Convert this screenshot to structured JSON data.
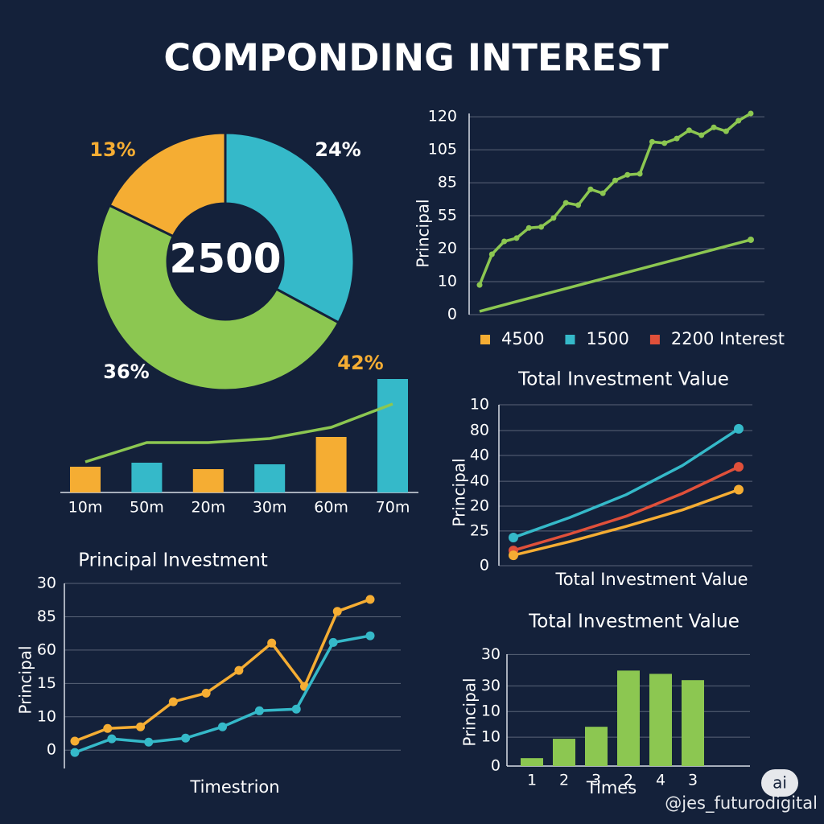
{
  "title": "COMPONDING INTEREST",
  "chart_data": [
    {
      "type": "donut",
      "center_label": "2500",
      "values": [
        24,
        36,
        13
      ],
      "value_labels": [
        "24%",
        "36%",
        "13%"
      ],
      "colors": [
        "#35b9c9",
        "#8cc751",
        "#f5ad33"
      ]
    },
    {
      "type": "line",
      "ylabel": "Principal",
      "ylim": [
        0,
        6.1
      ],
      "yticks": [
        0,
        {
          "value": 1,
          "label": "10"
        },
        {
          "value": 2,
          "label": "20"
        },
        {
          "value": 3,
          "label": "55"
        },
        {
          "value": 4,
          "label": "85"
        },
        {
          "value": 5,
          "label": "105"
        },
        {
          "value": 6,
          "label": "120"
        }
      ],
      "grid": true,
      "series": [
        {
          "color": "#8cc751",
          "values": [
            0.9,
            1.83,
            2.22,
            2.32,
            2.63,
            2.66,
            2.93,
            3.39,
            3.32,
            3.8,
            3.68,
            4.07,
            4.24,
            4.27,
            5.24,
            5.2,
            5.34,
            5.59,
            5.44,
            5.68,
            5.56,
            5.88,
            6.1
          ]
        },
        {
          "color": "#8cc751",
          "values": [
            0.1,
            2.27
          ]
        }
      ],
      "legend": [
        {
          "label": "4500",
          "color": "#f5ad33"
        },
        {
          "label": "1500",
          "color": "#35b9c9"
        },
        {
          "label": "2200 Interest",
          "color": "#e0503a"
        }
      ]
    },
    {
      "type": "bar",
      "categories": [
        "10m",
        "50m",
        "20m",
        "30m",
        "60m",
        "70m"
      ],
      "values": [
        32,
        37,
        29,
        35,
        69,
        141
      ],
      "colors": [
        "#f5ad33",
        "#35b9c9",
        "#f5ad33",
        "#35b9c9",
        "#f5ad33",
        "#35b9c9"
      ],
      "line": {
        "color": "#8cc751",
        "values": [
          38,
          62,
          62,
          67,
          81,
          110
        ]
      },
      "annotation": "42%"
    },
    {
      "type": "line",
      "title": "Principal Investment",
      "ylabel": "Principal",
      "xlabel": "Timestrion",
      "ylim": [
        -0.55,
        5
      ],
      "yticks": [
        0,
        {
          "value": 1,
          "label": "10"
        },
        {
          "value": 2,
          "label": "15"
        },
        {
          "value": 3,
          "label": "60"
        },
        {
          "value": 4,
          "label": "85"
        },
        {
          "value": 5,
          "label": "30"
        }
      ],
      "grid": true,
      "series": [
        {
          "color": "#f5ad33",
          "values": [
            0.27,
            0.65,
            0.7,
            1.45,
            1.71,
            2.39,
            3.21,
            1.91,
            4.16,
            4.52
          ]
        },
        {
          "color": "#35b9c9",
          "values": [
            -0.07,
            0.34,
            0.24,
            0.36,
            0.7,
            1.18,
            1.23,
            3.23,
            3.43
          ]
        }
      ]
    },
    {
      "type": "line",
      "title": "Total Investment Value",
      "ylabel": "Principal",
      "xlabel": "Total Investment Value",
      "ylim": [
        0,
        6.35
      ],
      "yticks": [
        0,
        {
          "value": 1.37,
          "label": "25"
        },
        {
          "value": 2.35,
          "label": "20"
        },
        {
          "value": 3.33,
          "label": "40"
        },
        {
          "value": 4.35,
          "label": "40"
        },
        {
          "value": 5.33,
          "label": "80"
        },
        {
          "value": 6.35,
          "label": "10"
        }
      ],
      "grid": true,
      "series": [
        {
          "color": "#35b9c9",
          "values": [
            1.11,
            1.9,
            2.8,
            3.95,
            5.4
          ]
        },
        {
          "color": "#e0503a",
          "values": [
            0.6,
            1.25,
            1.95,
            2.85,
            3.9
          ]
        },
        {
          "color": "#f5ad33",
          "values": [
            0.41,
            0.95,
            1.55,
            2.2,
            3.0
          ]
        }
      ]
    },
    {
      "type": "bar",
      "title": "Total Investment Value",
      "ylabel": "Principal",
      "xlabel": "Times",
      "categories": [
        "1",
        "2",
        "3",
        "2",
        "4",
        "3"
      ],
      "values": [
        0.29,
        1.0,
        1.44,
        3.5,
        3.38,
        3.15
      ],
      "color": "#8cc751",
      "ylim": [
        0,
        4.1
      ],
      "yticks": [
        0,
        {
          "value": 1.06,
          "label": "10"
        },
        {
          "value": 2,
          "label": "10"
        },
        {
          "value": 2.94,
          "label": "30"
        },
        {
          "value": 4.09,
          "label": "30"
        }
      ],
      "grid": true
    }
  ],
  "watermark": {
    "badge": "ai",
    "handle": "@jes_futurodigital"
  }
}
